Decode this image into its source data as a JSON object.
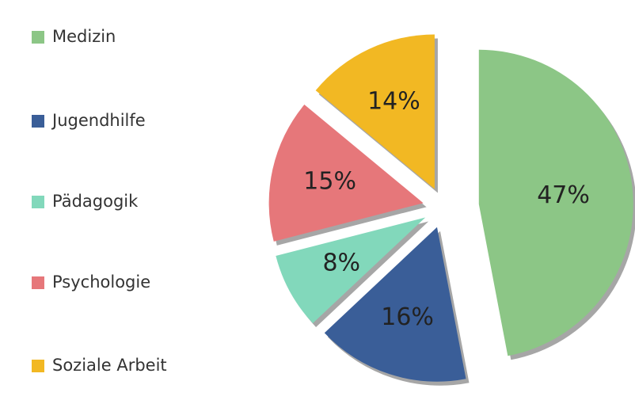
{
  "chart_data": {
    "type": "pie",
    "categories": [
      "Medizin",
      "Jugendhilfe",
      "Pädagogik",
      "Psychologie",
      "Soziale Arbeit"
    ],
    "values": [
      47,
      16,
      8,
      15,
      14
    ],
    "value_labels": [
      "47%",
      "16%",
      "8%",
      "15%",
      "14%"
    ],
    "colors": [
      "#8cc686",
      "#3a5e98",
      "#82d8bb",
      "#e6777a",
      "#f2b823"
    ],
    "legend": "left"
  }
}
